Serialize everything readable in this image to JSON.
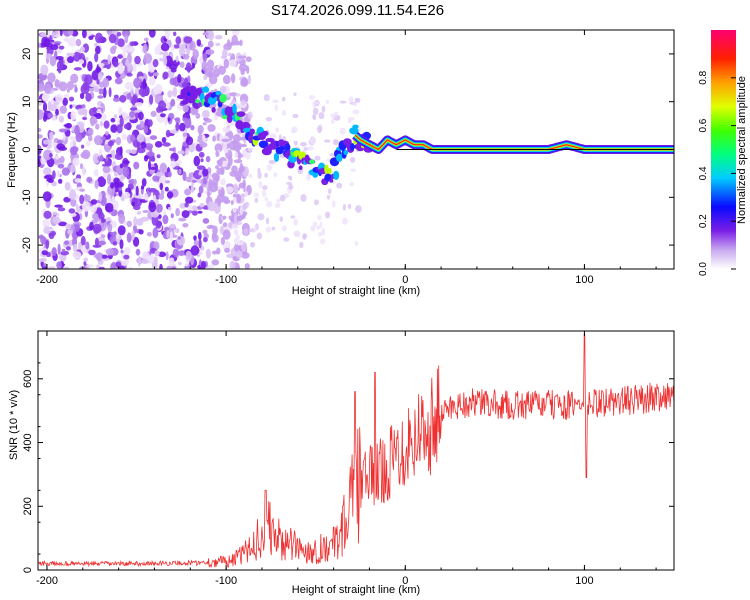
{
  "title": "S174.2026.099.11.54.E26",
  "chart_data": [
    {
      "type": "heatmap",
      "xlabel": "Height of straight line (km)",
      "ylabel": "Frequency (Hz)",
      "xlim": [
        -205,
        150
      ],
      "ylim": [
        -25,
        25
      ],
      "xticks": [
        -200,
        -100,
        0,
        100
      ],
      "xtick_labels": [
        "-200",
        "-100",
        "0",
        "100"
      ],
      "yticks": [
        -20,
        -10,
        0,
        10,
        20
      ],
      "ytick_labels": [
        "-20",
        "-10",
        "0",
        "10",
        "20"
      ],
      "ridge": {
        "x": [
          -125,
          -115,
          -105,
          -98,
          -90,
          -80,
          -72,
          -65,
          -57,
          -50,
          -42,
          -38,
          -33,
          -28,
          -25,
          -20,
          -15,
          -10,
          -5,
          0,
          5,
          10,
          15,
          20,
          40,
          60,
          80,
          90,
          100,
          120,
          150
        ],
        "y": [
          11,
          11,
          10,
          8,
          5,
          2,
          0,
          -1,
          -3,
          -5,
          -6,
          -3,
          1,
          3,
          2,
          1,
          0,
          2,
          1,
          2,
          1,
          1,
          0,
          0,
          0,
          0,
          0,
          1,
          0,
          0,
          0
        ]
      },
      "colorbar": {
        "label": "Normalized spectral amplitude",
        "range": [
          0,
          1
        ],
        "ticks": [
          0.0,
          0.2,
          0.4,
          0.6,
          0.8
        ],
        "tick_labels": [
          "0.0",
          "0.2",
          "0.4",
          "0.6",
          "0.8"
        ]
      }
    },
    {
      "type": "line",
      "xlabel": "Height of straight line (km)",
      "ylabel": "SNR (10 * v/v)",
      "xlim": [
        -205,
        150
      ],
      "ylim": [
        0,
        750
      ],
      "xticks": [
        -200,
        -100,
        0,
        100
      ],
      "xtick_labels": [
        "-200",
        "-100",
        "0",
        "100"
      ],
      "yticks": [
        0,
        200,
        400,
        600
      ],
      "ytick_labels": [
        "0",
        "200",
        "400",
        "600"
      ],
      "series": [
        {
          "name": "SNR",
          "color": "#ee3030",
          "x": [
            -205,
            -180,
            -150,
            -120,
            -105,
            -100,
            -95,
            -90,
            -85,
            -80,
            -75,
            -70,
            -65,
            -60,
            -55,
            -50,
            -45,
            -40,
            -35,
            -30,
            -25,
            -20,
            -15,
            -10,
            -5,
            0,
            5,
            10,
            15,
            20,
            25,
            30,
            40,
            50,
            60,
            70,
            80,
            90,
            100,
            110,
            120,
            130,
            140,
            150
          ],
          "values": [
            20,
            20,
            20,
            22,
            25,
            28,
            35,
            50,
            80,
            120,
            130,
            90,
            80,
            70,
            60,
            60,
            75,
            80,
            130,
            220,
            280,
            290,
            300,
            330,
            360,
            400,
            420,
            440,
            460,
            490,
            510,
            520,
            525,
            520,
            515,
            520,
            520,
            515,
            520,
            525,
            530,
            535,
            545,
            555
          ]
        }
      ],
      "spikes": [
        {
          "x": -28,
          "value": 560
        },
        {
          "x": -17,
          "value": 620
        },
        {
          "x": 100,
          "value": 740
        },
        {
          "x": 101,
          "value": 290
        },
        {
          "x": -78,
          "value": 250
        }
      ]
    }
  ]
}
